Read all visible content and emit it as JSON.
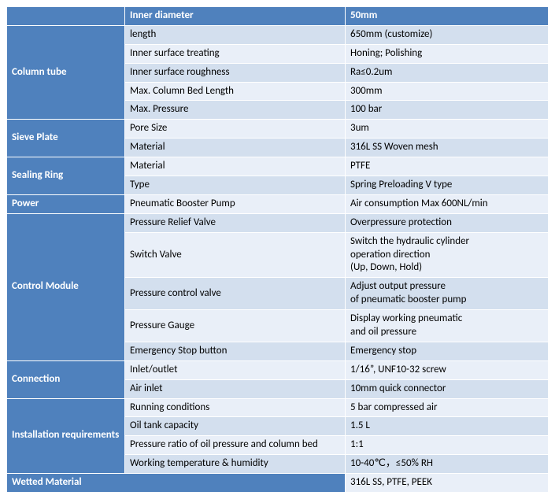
{
  "colors": {
    "header_bg": "#4f81bd",
    "header_fg": "#ffffff",
    "band_even": "#d3dfee",
    "band_odd": "#e9eff8",
    "border": "#ffffff"
  },
  "header": {
    "col2": "Inner diameter",
    "col3": "50mm"
  },
  "column_tube": {
    "label": "Column tube",
    "rows": [
      {
        "p": "length",
        "v": "650mm (customize)"
      },
      {
        "p": "Inner surface treating",
        "v": "Honing; Polishing"
      },
      {
        "p": "Inner surface roughness",
        "v": "Ra≤0.2um"
      },
      {
        "p": "Max. Column Bed Length",
        "v": "300mm"
      },
      {
        "p": "Max. Pressure",
        "v": "100 bar"
      }
    ]
  },
  "sieve_plate": {
    "label": "Sieve Plate",
    "rows": [
      {
        "p": "Pore Size",
        "v": "3um"
      },
      {
        "p": "Material",
        "v": "316L SS Woven mesh"
      }
    ]
  },
  "sealing_ring": {
    "label": "Sealing Ring",
    "rows": [
      {
        "p": "Material",
        "v": "PTFE"
      },
      {
        "p": "Type",
        "v": "Spring Preloading V type"
      }
    ]
  },
  "power": {
    "label": "Power",
    "rows": [
      {
        "p": "Pneumatic Booster Pump",
        "v": "Air consumption Max 600NL/min"
      }
    ]
  },
  "control_module": {
    "label": "Control Module",
    "rows": [
      {
        "p": "Pressure Relief Valve",
        "v": "Overpressure protection"
      },
      {
        "p": "Switch Valve",
        "v": "Switch the hydraulic cylinder\noperation direction\n(Up, Down, Hold)"
      },
      {
        "p": "Pressure control valve",
        "v": "Adjust output pressure\nof pneumatic booster pump"
      },
      {
        "p": "Pressure Gauge",
        "v": "Display working pneumatic\nand oil pressure"
      },
      {
        "p": "Emergency Stop button",
        "v": "Emergency stop"
      }
    ]
  },
  "connection": {
    "label": "Connection",
    "rows": [
      {
        "p": "Inlet/outlet",
        "v": "1/16”, UNF10-32 screw"
      },
      {
        "p": "Air inlet",
        "v": "10mm quick connector"
      }
    ]
  },
  "installation": {
    "label": "Installation requirements",
    "rows": [
      {
        "p": "Running conditions",
        "v": "5 bar compressed air"
      },
      {
        "p": "Oil tank capacity",
        "v": "1.5 L"
      },
      {
        "p": "Pressure ratio of oil pressure and column bed",
        "v": "1:1"
      },
      {
        "p": "Working temperature & humidity",
        "v": "10-40℃，≤50% RH"
      }
    ]
  },
  "wetted_material": {
    "label": "Wetted Material",
    "value": "316L SS, PTFE, PEEK"
  }
}
